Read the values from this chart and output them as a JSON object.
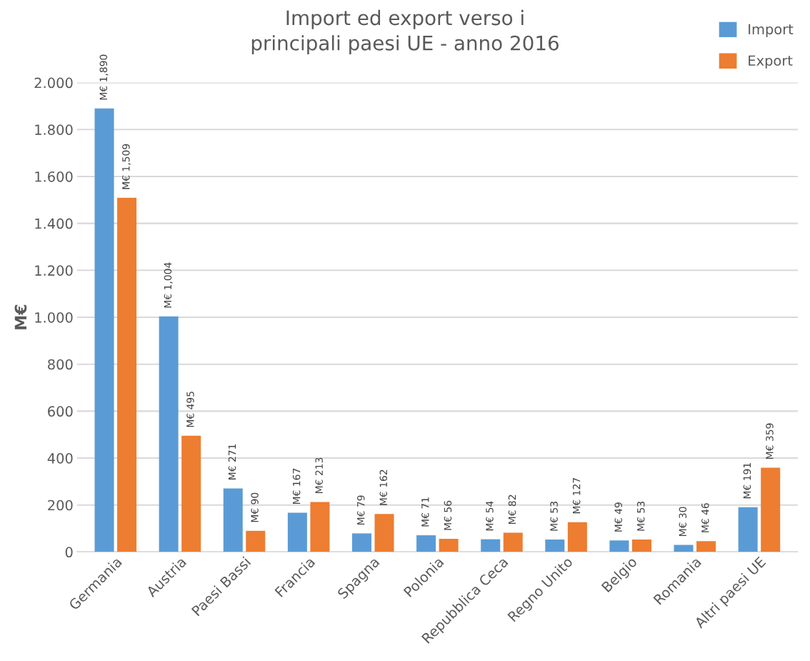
{
  "chart_data": {
    "type": "bar",
    "title": "Import ed export verso i\nprincipali paesi UE - anno 2016",
    "ylabel": "M€",
    "categories": [
      "Germania",
      "Austria",
      "Paesi Bassi",
      "Francia",
      "Spagna",
      "Polonia",
      "Repubblica Ceca",
      "Regno Unito",
      "Belgio",
      "Romania",
      "Altri paesi UE"
    ],
    "series": [
      {
        "name": "Import",
        "color": "#5b9bd5",
        "values": [
          1890,
          1004,
          271,
          167,
          79,
          71,
          54,
          53,
          49,
          30,
          191
        ],
        "value_labels": [
          "M€ 1,890",
          "M€ 1,004",
          "M€ 271",
          "M€ 167",
          "M€ 79",
          "M€ 71",
          "M€ 54",
          "M€ 53",
          "M€ 49",
          "M€ 30",
          "M€ 191"
        ]
      },
      {
        "name": "Export",
        "color": "#ed7d31",
        "values": [
          1509,
          495,
          90,
          213,
          162,
          56,
          82,
          127,
          53,
          46,
          359
        ],
        "value_labels": [
          "M€ 1,509",
          "M€ 495",
          "M€ 90",
          "M€ 213",
          "M€ 162",
          "M€ 56",
          "M€ 82",
          "M€ 127",
          "M€ 53",
          "M€ 46",
          "M€ 359"
        ]
      }
    ],
    "ylim": [
      0,
      2000
    ],
    "yticks": [
      0,
      200,
      400,
      600,
      800,
      {
        "value": 1000,
        "label": "1.000"
      },
      {
        "value": 1200,
        "label": "1.200"
      },
      {
        "value": 1400,
        "label": "1.400"
      },
      {
        "value": 1600,
        "label": "1.600"
      },
      {
        "value": 1800,
        "label": "1.800"
      },
      {
        "value": 2000,
        "label": "2.000"
      }
    ],
    "grid": "y",
    "legend": "top right"
  }
}
